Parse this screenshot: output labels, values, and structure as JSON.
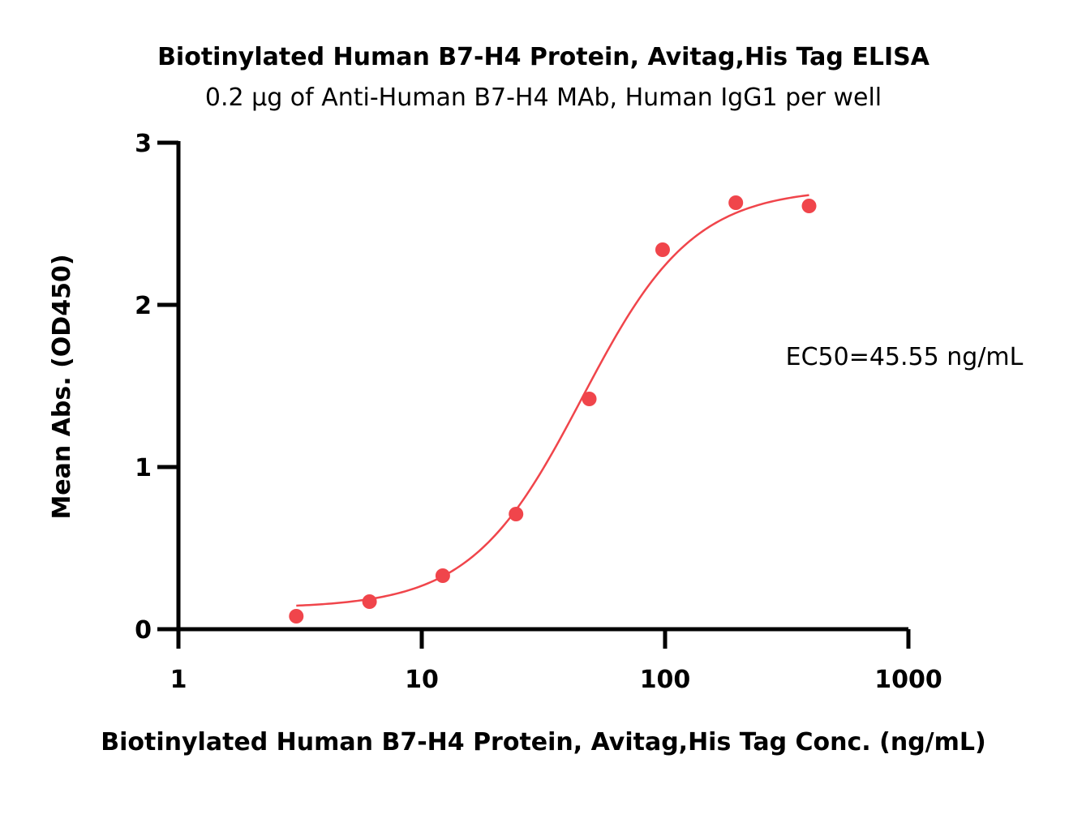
{
  "chart_data": {
    "type": "scatter",
    "title": "Biotinylated Human B7-H4 Protein, Avitag,His Tag ELISA",
    "subtitle": "0.2 µg of Anti-Human B7-H4 MAb, Human IgG1 per well",
    "xlabel": "Biotinylated Human B7-H4 Protein, Avitag,His Tag Conc. (ng/mL)",
    "ylabel": "Mean Abs. (OD450)",
    "x_scale": "log",
    "xlim": [
      1,
      1000
    ],
    "ylim": [
      0,
      3
    ],
    "x_ticks": [
      "1",
      "10",
      "100",
      "1000"
    ],
    "y_ticks": [
      "0",
      "1",
      "2",
      "3"
    ],
    "x_tick_values": [
      1,
      10,
      100,
      1000
    ],
    "y_tick_values": [
      0,
      1,
      2,
      3
    ],
    "grid": false,
    "series": [
      {
        "x": [
          3.05,
          6.1,
          12.2,
          24.4,
          48.8,
          97.7,
          195.3,
          390.6
        ],
        "y": [
          0.08,
          0.17,
          0.33,
          0.71,
          1.42,
          2.34,
          2.63,
          2.61
        ],
        "color": "#f0454b",
        "fit": {
          "model": "4PL",
          "bottom": 0.13,
          "top": 2.72,
          "ec50": 45.55,
          "hill": 1.9,
          "x_range": [
            3.05,
            390.6
          ]
        }
      }
    ],
    "annotation": "EC50=45.55 ng/mL"
  }
}
